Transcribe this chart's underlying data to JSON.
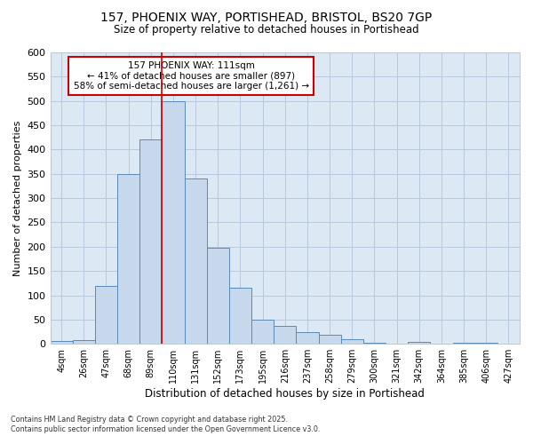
{
  "title_line1": "157, PHOENIX WAY, PORTISHEAD, BRISTOL, BS20 7GP",
  "title_line2": "Size of property relative to detached houses in Portishead",
  "xlabel": "Distribution of detached houses by size in Portishead",
  "ylabel": "Number of detached properties",
  "footer_line1": "Contains HM Land Registry data © Crown copyright and database right 2025.",
  "footer_line2": "Contains public sector information licensed under the Open Government Licence v3.0.",
  "bin_labels": [
    "4sqm",
    "26sqm",
    "47sqm",
    "68sqm",
    "89sqm",
    "110sqm",
    "131sqm",
    "152sqm",
    "173sqm",
    "195sqm",
    "216sqm",
    "237sqm",
    "258sqm",
    "279sqm",
    "300sqm",
    "321sqm",
    "342sqm",
    "364sqm",
    "385sqm",
    "406sqm",
    "427sqm"
  ],
  "bar_values": [
    5,
    8,
    120,
    350,
    420,
    500,
    340,
    197,
    115,
    50,
    37,
    25,
    19,
    9,
    2,
    0,
    4,
    0,
    3,
    2,
    1
  ],
  "bar_color": "#c8d8ec",
  "bar_edge_color": "#5a8ab8",
  "grid_color": "#b8c8dc",
  "plot_bg_color": "#dce8f4",
  "fig_bg_color": "#ffffff",
  "vline_x": 4.5,
  "vline_color": "#cc0000",
  "annotation_title": "157 PHOENIX WAY: 111sqm",
  "annotation_line2": "← 41% of detached houses are smaller (897)",
  "annotation_line3": "58% of semi-detached houses are larger (1,261) →",
  "annotation_box_color": "#ffffff",
  "annotation_border_color": "#cc0000",
  "ylim": [
    0,
    600
  ],
  "yticks": [
    0,
    50,
    100,
    150,
    200,
    250,
    300,
    350,
    400,
    450,
    500,
    550,
    600
  ]
}
